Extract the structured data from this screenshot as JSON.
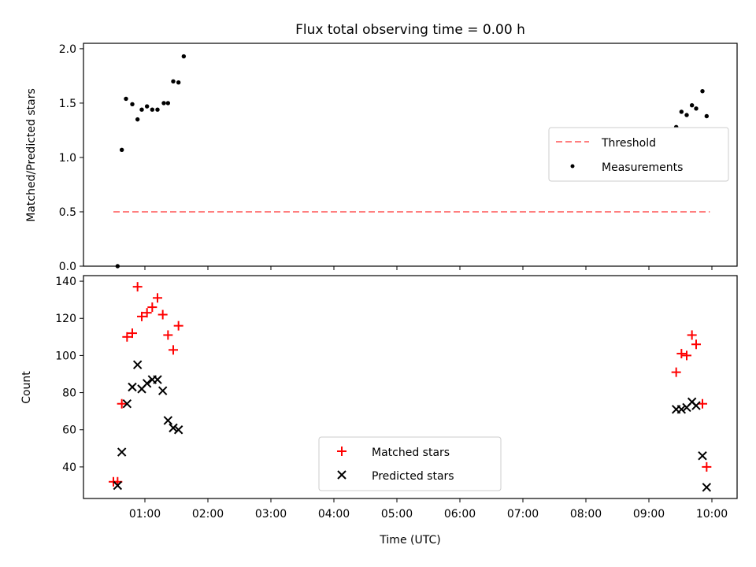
{
  "chart_data": [
    {
      "type": "scatter",
      "title": "Flux total observing time = 0.00 h",
      "ylabel": "Matched/Predicted stars",
      "xlabel": "",
      "ylim": [
        0,
        2.05
      ],
      "yticks": [
        "0.0",
        "0.5",
        "1.0",
        "1.5",
        "2.0"
      ],
      "ytick_values": [
        0,
        0.5,
        1.0,
        1.5,
        2.0
      ],
      "legend": {
        "placement": "right",
        "entries": [
          "Threshold",
          "Measurements"
        ]
      },
      "series": [
        {
          "name": "Threshold",
          "kind": "dashed-line",
          "color": "#ff7f7f",
          "x": [
            "00:30",
            "09:58"
          ],
          "y": [
            0.5,
            0.5
          ]
        },
        {
          "name": "Measurements",
          "kind": "dot",
          "color": "#000000",
          "x": [
            "00:34",
            "00:38",
            "00:42",
            "00:48",
            "00:53",
            "00:57",
            "01:02",
            "01:07",
            "01:12",
            "01:18",
            "01:22",
            "01:27",
            "01:32",
            "01:37",
            "09:26",
            "09:31",
            "09:36",
            "09:41",
            "09:45",
            "09:51",
            "09:55"
          ],
          "y": [
            0.0,
            1.07,
            1.54,
            1.49,
            1.35,
            1.44,
            1.47,
            1.44,
            1.44,
            1.5,
            1.5,
            1.7,
            1.69,
            1.93,
            1.28,
            1.42,
            1.39,
            1.48,
            1.45,
            1.61,
            1.38
          ]
        }
      ]
    },
    {
      "type": "scatter",
      "title": "",
      "ylabel": "Count",
      "xlabel": "Time (UTC)",
      "ylim": [
        23,
        143
      ],
      "yticks": [
        "40",
        "60",
        "80",
        "100",
        "120",
        "140"
      ],
      "ytick_values": [
        40,
        60,
        80,
        100,
        120,
        140
      ],
      "xticks": [
        "01:00",
        "02:00",
        "03:00",
        "04:00",
        "05:00",
        "06:00",
        "07:00",
        "08:00",
        "09:00",
        "10:00"
      ],
      "legend": {
        "placement": "bottom-center",
        "entries": [
          "Matched stars",
          "Predicted stars"
        ]
      },
      "series": [
        {
          "name": "Matched stars",
          "marker": "plus",
          "color": "#ff0000",
          "x": [
            "00:30",
            "00:34",
            "00:38",
            "00:43",
            "00:48",
            "00:53",
            "00:57",
            "01:02",
            "01:07",
            "01:12",
            "01:17",
            "01:22",
            "01:27",
            "01:32",
            "09:26",
            "09:31",
            "09:36",
            "09:41",
            "09:45",
            "09:51",
            "09:55"
          ],
          "y": [
            32,
            32,
            74,
            110,
            112,
            137,
            121,
            123,
            126,
            131,
            122,
            111,
            103,
            116,
            91,
            101,
            100,
            111,
            106,
            74,
            40
          ]
        },
        {
          "name": "Predicted stars",
          "marker": "x",
          "color": "#000000",
          "x": [
            "00:34",
            "00:38",
            "00:43",
            "00:48",
            "00:53",
            "00:57",
            "01:02",
            "01:07",
            "01:12",
            "01:17",
            "01:22",
            "01:27",
            "01:32",
            "09:26",
            "09:31",
            "09:36",
            "09:41",
            "09:45",
            "09:51",
            "09:55"
          ],
          "y": [
            30,
            48,
            74,
            83,
            95,
            82,
            85,
            87,
            87,
            81,
            65,
            61,
            60,
            71,
            71,
            72,
            75,
            73,
            46,
            29
          ]
        }
      ]
    }
  ]
}
